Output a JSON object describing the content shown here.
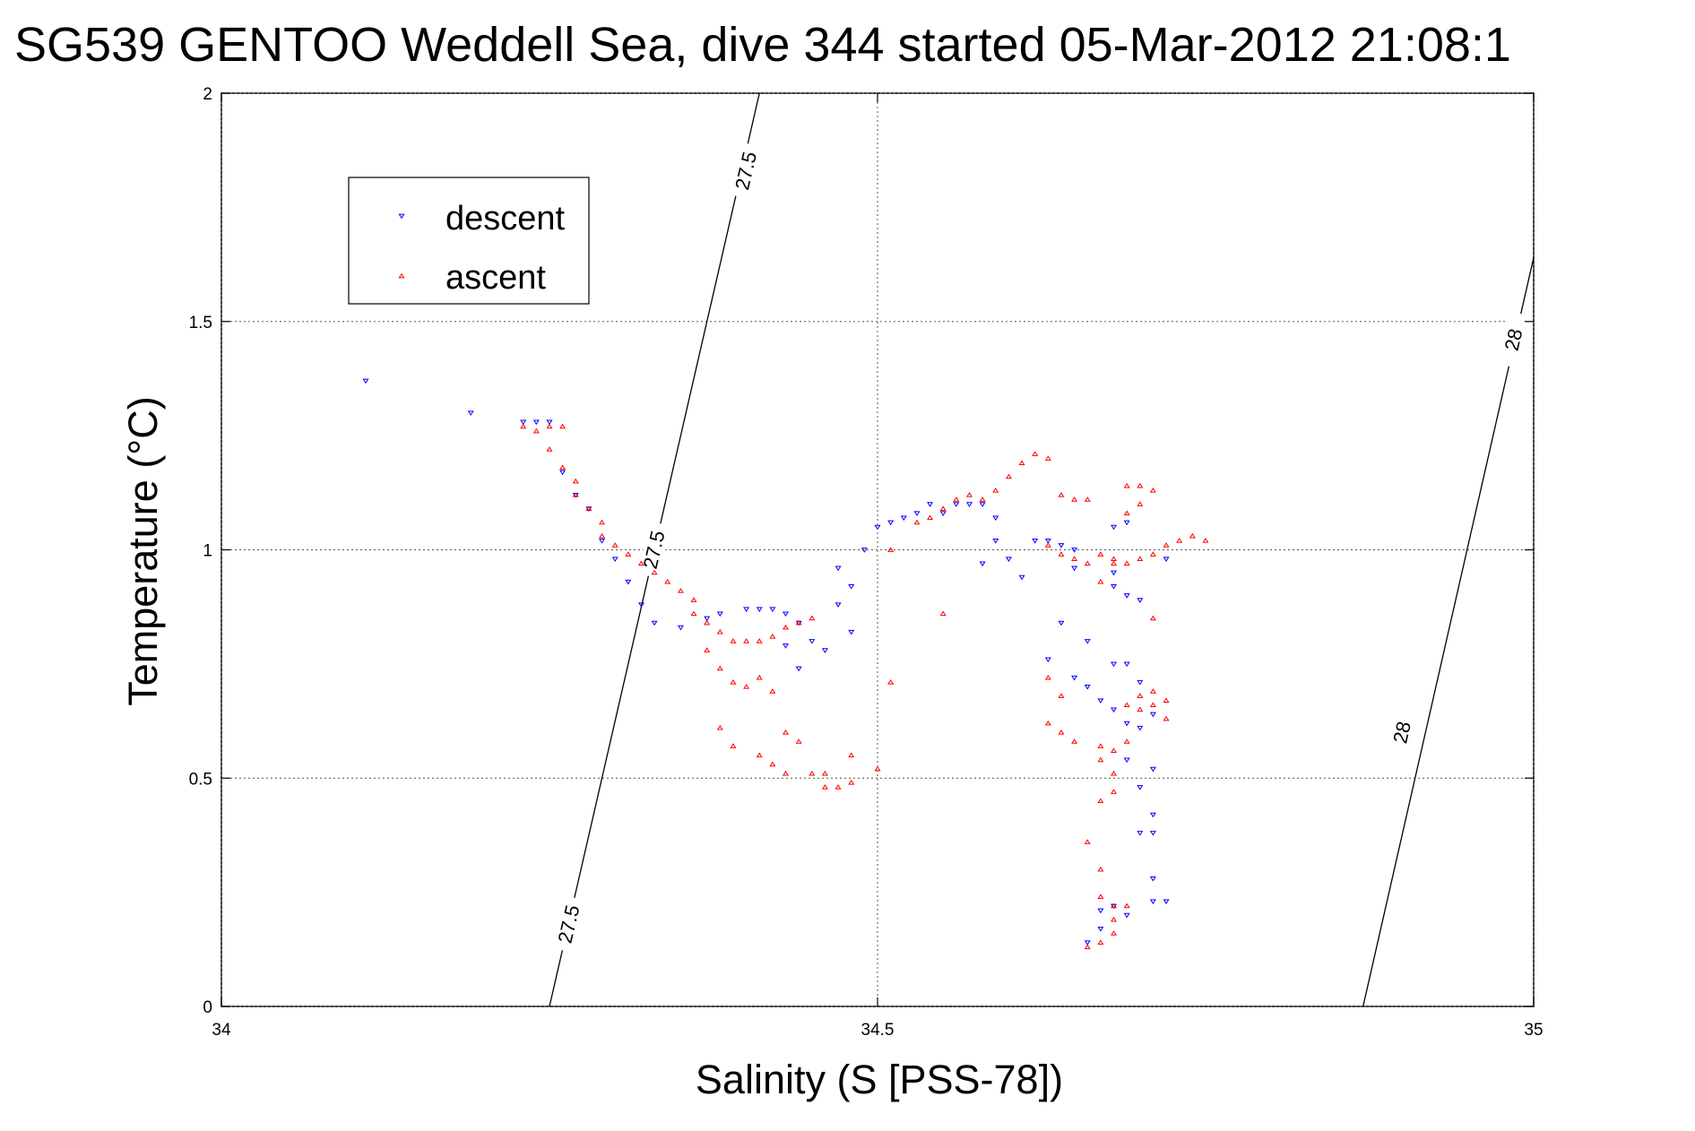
{
  "chart_data": {
    "type": "scatter",
    "title": "SG539 GENTOO Weddell Sea, dive 344 started 05-Mar-2012 21:08:1",
    "xlabel": "Salinity (S [PSS-78])",
    "ylabel": "Temperature (°C)",
    "xlim": [
      34,
      35
    ],
    "ylim": [
      0,
      2
    ],
    "xticks": [
      34,
      34.5,
      35
    ],
    "xtick_labels": [
      "34",
      "34.5",
      "35"
    ],
    "yticks": [
      0,
      0.5,
      1,
      1.5,
      2
    ],
    "ytick_labels": [
      "0",
      "0.5",
      "1",
      "1.5",
      "2"
    ],
    "grid": true,
    "legend_position": "top-left",
    "colors": {
      "descent": "#0000ff",
      "ascent": "#ff0000"
    },
    "series": [
      {
        "name": "descent",
        "marker": "triangle-down",
        "points": [
          [
            34.11,
            1.37
          ],
          [
            34.19,
            1.3
          ],
          [
            34.23,
            1.28
          ],
          [
            34.24,
            1.28
          ],
          [
            34.25,
            1.28
          ],
          [
            34.26,
            1.17
          ],
          [
            34.27,
            1.12
          ],
          [
            34.28,
            1.09
          ],
          [
            34.29,
            1.02
          ],
          [
            34.3,
            0.98
          ],
          [
            34.31,
            0.93
          ],
          [
            34.32,
            0.88
          ],
          [
            34.33,
            0.84
          ],
          [
            34.35,
            0.83
          ],
          [
            34.37,
            0.85
          ],
          [
            34.38,
            0.86
          ],
          [
            34.4,
            0.87
          ],
          [
            34.41,
            0.87
          ],
          [
            34.42,
            0.87
          ],
          [
            34.43,
            0.86
          ],
          [
            34.44,
            0.84
          ],
          [
            34.43,
            0.79
          ],
          [
            34.45,
            0.8
          ],
          [
            34.44,
            0.74
          ],
          [
            34.46,
            0.78
          ],
          [
            34.47,
            0.88
          ],
          [
            34.48,
            0.92
          ],
          [
            34.47,
            0.96
          ],
          [
            34.49,
            1.0
          ],
          [
            34.48,
            0.82
          ],
          [
            34.5,
            1.05
          ],
          [
            34.51,
            1.06
          ],
          [
            34.52,
            1.07
          ],
          [
            34.53,
            1.08
          ],
          [
            34.54,
            1.1
          ],
          [
            34.55,
            1.08
          ],
          [
            34.56,
            1.1
          ],
          [
            34.57,
            1.1
          ],
          [
            34.58,
            1.1
          ],
          [
            34.59,
            1.07
          ],
          [
            34.59,
            1.02
          ],
          [
            34.6,
            0.98
          ],
          [
            34.58,
            0.97
          ],
          [
            34.61,
            0.94
          ],
          [
            34.62,
            1.02
          ],
          [
            34.63,
            1.02
          ],
          [
            34.64,
            1.01
          ],
          [
            34.65,
            1.0
          ],
          [
            34.65,
            0.96
          ],
          [
            34.64,
            0.84
          ],
          [
            34.66,
            0.8
          ],
          [
            34.63,
            0.76
          ],
          [
            34.65,
            0.72
          ],
          [
            34.66,
            0.7
          ],
          [
            34.67,
            0.67
          ],
          [
            34.68,
            0.75
          ],
          [
            34.69,
            0.75
          ],
          [
            34.7,
            0.71
          ],
          [
            34.68,
            0.92
          ],
          [
            34.69,
            0.9
          ],
          [
            34.7,
            0.89
          ],
          [
            34.68,
            0.65
          ],
          [
            34.69,
            0.62
          ],
          [
            34.7,
            0.61
          ],
          [
            34.71,
            0.64
          ],
          [
            34.69,
            0.54
          ],
          [
            34.71,
            0.52
          ],
          [
            34.7,
            0.48
          ],
          [
            34.71,
            0.42
          ],
          [
            34.7,
            0.38
          ],
          [
            34.71,
            0.38
          ],
          [
            34.71,
            0.28
          ],
          [
            34.67,
            0.17
          ],
          [
            34.66,
            0.14
          ],
          [
            34.67,
            0.21
          ],
          [
            34.68,
            0.22
          ],
          [
            34.69,
            0.2
          ],
          [
            34.71,
            0.23
          ],
          [
            34.72,
            0.23
          ],
          [
            34.68,
            1.05
          ],
          [
            34.69,
            1.06
          ],
          [
            34.72,
            0.98
          ],
          [
            34.68,
            0.95
          ]
        ]
      },
      {
        "name": "ascent",
        "marker": "triangle-up",
        "points": [
          [
            34.23,
            1.27
          ],
          [
            34.24,
            1.26
          ],
          [
            34.25,
            1.27
          ],
          [
            34.26,
            1.27
          ],
          [
            34.25,
            1.22
          ],
          [
            34.26,
            1.18
          ],
          [
            34.27,
            1.15
          ],
          [
            34.27,
            1.12
          ],
          [
            34.28,
            1.09
          ],
          [
            34.29,
            1.06
          ],
          [
            34.29,
            1.03
          ],
          [
            34.3,
            1.01
          ],
          [
            34.31,
            0.99
          ],
          [
            34.32,
            0.97
          ],
          [
            34.33,
            0.95
          ],
          [
            34.34,
            0.93
          ],
          [
            34.35,
            0.91
          ],
          [
            34.36,
            0.89
          ],
          [
            34.36,
            0.86
          ],
          [
            34.37,
            0.84
          ],
          [
            34.38,
            0.82
          ],
          [
            34.39,
            0.8
          ],
          [
            34.4,
            0.8
          ],
          [
            34.41,
            0.8
          ],
          [
            34.42,
            0.81
          ],
          [
            34.43,
            0.83
          ],
          [
            34.44,
            0.84
          ],
          [
            34.45,
            0.85
          ],
          [
            34.37,
            0.78
          ],
          [
            34.38,
            0.74
          ],
          [
            34.39,
            0.71
          ],
          [
            34.4,
            0.7
          ],
          [
            34.41,
            0.72
          ],
          [
            34.42,
            0.69
          ],
          [
            34.38,
            0.61
          ],
          [
            34.39,
            0.57
          ],
          [
            34.41,
            0.55
          ],
          [
            34.42,
            0.53
          ],
          [
            34.43,
            0.51
          ],
          [
            34.45,
            0.51
          ],
          [
            34.46,
            0.51
          ],
          [
            34.44,
            0.58
          ],
          [
            34.43,
            0.6
          ],
          [
            34.46,
            0.48
          ],
          [
            34.47,
            0.48
          ],
          [
            34.48,
            0.49
          ],
          [
            34.48,
            0.55
          ],
          [
            34.5,
            0.52
          ],
          [
            34.51,
            0.71
          ],
          [
            34.51,
            1.0
          ],
          [
            34.53,
            1.06
          ],
          [
            34.54,
            1.07
          ],
          [
            34.55,
            1.09
          ],
          [
            34.56,
            1.11
          ],
          [
            34.57,
            1.12
          ],
          [
            34.58,
            1.11
          ],
          [
            34.59,
            1.13
          ],
          [
            34.6,
            1.16
          ],
          [
            34.61,
            1.19
          ],
          [
            34.62,
            1.21
          ],
          [
            34.63,
            1.2
          ],
          [
            34.55,
            0.86
          ],
          [
            34.64,
            1.12
          ],
          [
            34.65,
            1.11
          ],
          [
            34.66,
            1.11
          ],
          [
            34.63,
            1.01
          ],
          [
            34.64,
            0.99
          ],
          [
            34.65,
            0.98
          ],
          [
            34.66,
            0.97
          ],
          [
            34.67,
            0.99
          ],
          [
            34.68,
            0.98
          ],
          [
            34.69,
            0.97
          ],
          [
            34.7,
            0.98
          ],
          [
            34.71,
            0.99
          ],
          [
            34.72,
            1.01
          ],
          [
            34.73,
            1.02
          ],
          [
            34.74,
            1.03
          ],
          [
            34.75,
            1.02
          ],
          [
            34.69,
            1.14
          ],
          [
            34.7,
            1.14
          ],
          [
            34.71,
            1.13
          ],
          [
            34.7,
            1.1
          ],
          [
            34.69,
            1.08
          ],
          [
            34.63,
            0.72
          ],
          [
            34.64,
            0.68
          ],
          [
            34.63,
            0.62
          ],
          [
            34.64,
            0.6
          ],
          [
            34.65,
            0.58
          ],
          [
            34.67,
            0.57
          ],
          [
            34.68,
            0.56
          ],
          [
            34.67,
            0.54
          ],
          [
            34.68,
            0.51
          ],
          [
            34.69,
            0.58
          ],
          [
            34.7,
            0.65
          ],
          [
            34.71,
            0.66
          ],
          [
            34.72,
            0.67
          ],
          [
            34.7,
            0.68
          ],
          [
            34.71,
            0.69
          ],
          [
            34.69,
            0.66
          ],
          [
            34.72,
            0.63
          ],
          [
            34.68,
            0.47
          ],
          [
            34.67,
            0.45
          ],
          [
            34.66,
            0.36
          ],
          [
            34.67,
            0.3
          ],
          [
            34.67,
            0.24
          ],
          [
            34.68,
            0.22
          ],
          [
            34.68,
            0.19
          ],
          [
            34.67,
            0.14
          ],
          [
            34.66,
            0.13
          ],
          [
            34.68,
            0.16
          ],
          [
            34.69,
            0.22
          ],
          [
            34.71,
            0.85
          ],
          [
            34.68,
            0.97
          ],
          [
            34.67,
            0.93
          ]
        ]
      }
    ],
    "contours": [
      {
        "label": "27.5",
        "from": [
          34.25,
          0
        ],
        "to": [
          34.41,
          2
        ],
        "label_positions": [
          [
            34.265,
            0.18
          ],
          [
            34.33,
            1.0
          ],
          [
            34.4,
            1.83
          ]
        ]
      },
      {
        "label": "28",
        "from": [
          34.87,
          0
        ],
        "to": [
          35,
          1.64
        ],
        "label_positions": [
          [
            34.9,
            0.6
          ],
          [
            34.985,
            1.46
          ]
        ]
      }
    ]
  }
}
